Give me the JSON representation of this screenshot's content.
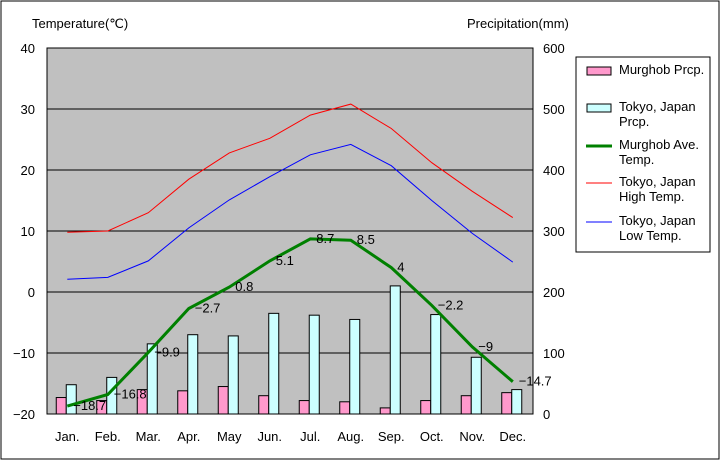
{
  "chart_data": {
    "type": "bar",
    "left_axis": {
      "label": "Temperature(℃)",
      "range": [
        -20,
        40
      ],
      "ticks": [
        "40",
        "30",
        "20",
        "10",
        "0",
        "−10",
        "−20"
      ]
    },
    "right_axis": {
      "label": "Precipitation(mm)",
      "range": [
        0,
        600
      ],
      "ticks": [
        "600",
        "500",
        "400",
        "300",
        "200",
        "100",
        "0"
      ]
    },
    "categories": [
      "Jan.",
      "Feb.",
      "Mar.",
      "Apr.",
      "May",
      "Jun.",
      "Jul.",
      "Aug.",
      "Sep.",
      "Oct.",
      "Nov.",
      "Dec."
    ],
    "grid": true,
    "legend_position": "right",
    "series": [
      {
        "name": "Murghob Prcp.",
        "kind": "bar",
        "axis": "right",
        "color": "#ff99cc",
        "values": [
          27,
          22,
          40,
          38,
          45,
          30,
          22,
          20,
          10,
          22,
          30,
          35
        ]
      },
      {
        "name": "Tokyo, Japan Prcp.",
        "kind": "bar",
        "axis": "right",
        "color": "#ccffff",
        "values": [
          48,
          60,
          115,
          130,
          128,
          165,
          162,
          155,
          210,
          163,
          93,
          40
        ]
      },
      {
        "name": "Murghob Ave. Temp.",
        "kind": "line",
        "axis": "left",
        "color": "#008000",
        "values": [
          -18.7,
          -16.8,
          -9.9,
          -2.7,
          0.8,
          5.1,
          8.7,
          8.5,
          4,
          -2.2,
          -9,
          -14.7
        ],
        "labels": [
          "−18.7",
          "−16.8",
          "−9.9",
          "−2.7",
          "0.8",
          "5.1",
          "8.7",
          "8.5",
          "4",
          "−2.2",
          "−9",
          "−14.7"
        ]
      },
      {
        "name": "Tokyo, Japan High Temp.",
        "kind": "line",
        "axis": "left",
        "color": "#ff0000",
        "values": [
          9.8,
          10,
          13,
          18.5,
          22.8,
          25.2,
          29,
          30.8,
          26.8,
          21.2,
          16.5,
          12.2
        ]
      },
      {
        "name": "Tokyo, Japan Low Temp.",
        "kind": "line",
        "axis": "left",
        "color": "#0000ff",
        "values": [
          2.1,
          2.4,
          5.1,
          10.5,
          15.1,
          18.9,
          22.5,
          24.2,
          20.7,
          15,
          9.6,
          4.9
        ]
      }
    ],
    "legend": [
      {
        "series": 0,
        "lines": [
          "Murghob Prcp."
        ]
      },
      {
        "series": 1,
        "lines": [
          "Tokyo, Japan",
          "Prcp."
        ]
      },
      {
        "series": 2,
        "lines": [
          "Murghob Ave.",
          "Temp."
        ]
      },
      {
        "series": 3,
        "lines": [
          "Tokyo, Japan",
          "High Temp."
        ]
      },
      {
        "series": 4,
        "lines": [
          "Tokyo, Japan",
          "Low Temp."
        ]
      }
    ]
  }
}
